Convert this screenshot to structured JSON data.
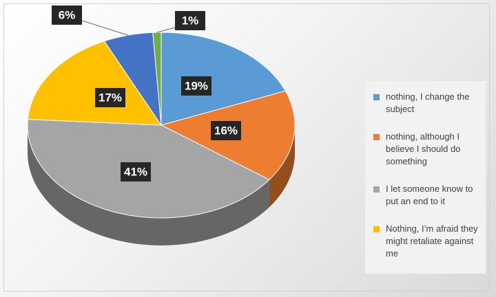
{
  "chart_data": {
    "type": "pie",
    "categories": [
      "nothing, I change the subject",
      "nothing, although I believe I should do something",
      "I let someone know to put an end to it",
      "Nothing, I’m afraid they might retaliate against me",
      null,
      null
    ],
    "values": [
      19,
      16,
      41,
      17,
      6,
      1
    ],
    "value_labels": [
      "19%",
      "16%",
      "41%",
      "17%",
      "6%",
      "1%"
    ],
    "colors": [
      "#5b9bd5",
      "#ed7d31",
      "#a5a5a5",
      "#ffc000",
      "#4472c4",
      "#70ad47"
    ]
  }
}
